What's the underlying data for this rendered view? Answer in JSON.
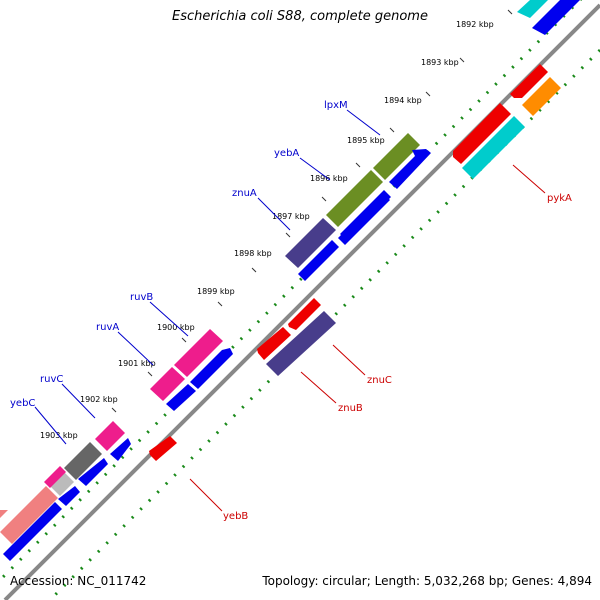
{
  "title": "Escherichia coli S88, complete genome",
  "footer": {
    "accession": "Accession: NC_011742",
    "topology": "Topology: circular;",
    "length": "Length: 5,032,268 bp;",
    "genes": "Genes: 4,894"
  },
  "ticks": [
    "1892 kbp",
    "1893 kbp",
    "1894 kbp",
    "1895 kbp",
    "1896 kbp",
    "1897 kbp",
    "1898 kbp",
    "1899 kbp",
    "1900 kbp",
    "1901 kbp",
    "1902 kbp",
    "1903 kbp"
  ],
  "forward_genes": [
    "lpxM",
    "yebA",
    "znuA",
    "ruvB",
    "ruvA",
    "ruvC",
    "yebC"
  ],
  "reverse_genes": [
    "pykA",
    "znuC",
    "znuB",
    "yebB"
  ],
  "colors": {
    "forward_label": "#0000cc",
    "reverse_label": "#cc0000",
    "cds_forward": "#0000ee",
    "cds_reverse": "#ee0000",
    "backbone": "#888888",
    "gc_dots": "#1a8a1a"
  }
}
